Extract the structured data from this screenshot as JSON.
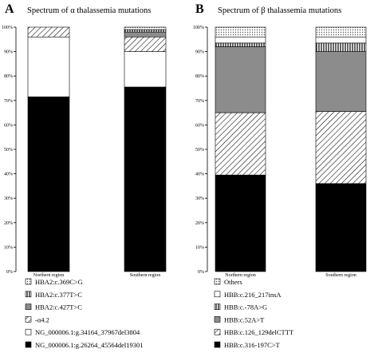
{
  "figure": {
    "panels": [
      {
        "letter": "A",
        "title": "Spectrum of α thalassemia mutations"
      },
      {
        "letter": "B",
        "title": "Spectrum of β thalassemia mutations"
      }
    ]
  },
  "chart_data": [
    {
      "type": "bar",
      "stacked": true,
      "title": "Spectrum of α thalassemia mutations",
      "xlabel": "",
      "ylabel": "",
      "ylim": [
        0,
        100
      ],
      "y_ticks": [
        "0%",
        "10%",
        "20%",
        "30%",
        "40%",
        "50%",
        "60%",
        "70%",
        "80%",
        "90%",
        "100%"
      ],
      "categories": [
        "Northern region",
        "Southern region"
      ],
      "legend_position": "bottom",
      "series": [
        {
          "name": "NG_000006.1:g.26264_45564del19301",
          "values": [
            71.5,
            75.5
          ],
          "fill": "black"
        },
        {
          "name": "NG_000006.1:g.34164_37967del3804",
          "values": [
            24.5,
            14.5
          ],
          "fill": "white"
        },
        {
          "name": "-α4.2",
          "values": [
            4.0,
            6.0
          ],
          "fill": "diag"
        },
        {
          "name": "HBA2:c.427T>C",
          "values": [
            0.0,
            2.0
          ],
          "fill": "gray"
        },
        {
          "name": "HBA2:c.377T>C",
          "values": [
            0.0,
            1.0
          ],
          "fill": "vert"
        },
        {
          "name": "HBA2:c.369C>G",
          "values": [
            0.0,
            1.0
          ],
          "fill": "dots"
        }
      ]
    },
    {
      "type": "bar",
      "stacked": true,
      "title": "Spectrum of β thalassemia mutations",
      "xlabel": "",
      "ylabel": "",
      "ylim": [
        0,
        100
      ],
      "y_ticks": [
        "0%",
        "10%",
        "20%",
        "30%",
        "40%",
        "50%",
        "60%",
        "70%",
        "80%",
        "90%",
        "100%"
      ],
      "categories": [
        "Northern region",
        "Southern region"
      ],
      "legend_position": "bottom",
      "series": [
        {
          "name": "HBB:c.316-197C>T",
          "values": [
            39.5,
            36.0
          ],
          "fill": "black"
        },
        {
          "name": "HBB:c.126_129delCTTT",
          "values": [
            25.5,
            29.5
          ],
          "fill": "diag"
        },
        {
          "name": "HBB:c.52A>T",
          "values": [
            27.0,
            24.5
          ],
          "fill": "gray"
        },
        {
          "name": "HBB:c.-78A>G",
          "values": [
            1.5,
            3.5
          ],
          "fill": "vert"
        },
        {
          "name": "HBB:c.216_217insA",
          "values": [
            2.5,
            2.5
          ],
          "fill": "white"
        },
        {
          "name": "Others",
          "values": [
            4.0,
            4.0
          ],
          "fill": "dots"
        }
      ]
    }
  ]
}
